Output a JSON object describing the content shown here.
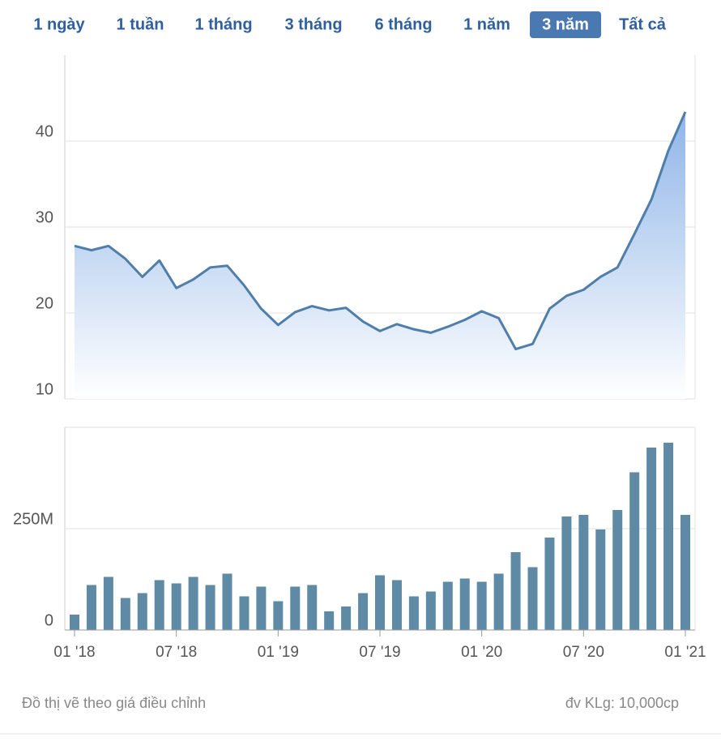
{
  "tabs": {
    "items": [
      "1 ngày",
      "1 tuần",
      "1 tháng",
      "3 tháng",
      "6 tháng",
      "1 năm",
      "3 năm",
      "Tất cả"
    ],
    "active": 6
  },
  "chart_data": [
    {
      "type": "line",
      "color": "#4f7eaa",
      "grid": true,
      "ylim": [
        10,
        50
      ],
      "yticks": [
        10,
        20,
        30,
        40
      ],
      "values": [
        27.8,
        27.3,
        27.8,
        26.3,
        24.2,
        26.1,
        22.9,
        23.9,
        25.3,
        25.5,
        23.2,
        20.5,
        18.6,
        20.1,
        20.8,
        20.3,
        20.6,
        19.0,
        17.9,
        18.7,
        18.1,
        17.7,
        18.4,
        19.2,
        20.2,
        19.4,
        15.8,
        16.4,
        20.5,
        22.0,
        22.7,
        24.2,
        25.3,
        29.2,
        33.2,
        38.9,
        43.4
      ]
    },
    {
      "type": "bar",
      "color": "#5f8aa6",
      "grid": true,
      "ylim": [
        0,
        500000000
      ],
      "yticks": [
        0,
        {
          "value": 250000000,
          "label": "250M"
        }
      ],
      "categories": [
        "01 '18",
        null,
        null,
        null,
        null,
        null,
        "07 '18",
        null,
        null,
        null,
        null,
        null,
        "01 '19",
        null,
        null,
        null,
        null,
        null,
        "07 '19",
        null,
        null,
        null,
        null,
        null,
        "01 '20",
        null,
        null,
        null,
        null,
        null,
        "07 '20",
        null,
        null,
        null,
        null,
        null,
        "01 '21"
      ],
      "values": [
        38000000,
        111000000,
        131000000,
        79000000,
        91000000,
        123000000,
        115000000,
        131000000,
        111000000,
        139000000,
        83000000,
        107000000,
        71000000,
        107000000,
        111000000,
        46000000,
        58000000,
        91000000,
        135000000,
        123000000,
        83000000,
        95000000,
        119000000,
        127000000,
        119000000,
        139000000,
        192000000,
        155000000,
        228000000,
        280000000,
        284000000,
        248000000,
        296000000,
        389000000,
        450000000,
        462000000,
        284000000
      ]
    }
  ],
  "footer": {
    "note": "Đồ thị vẽ theo giá điều chỉnh",
    "unit": "đv KLg: 10,000cp"
  }
}
